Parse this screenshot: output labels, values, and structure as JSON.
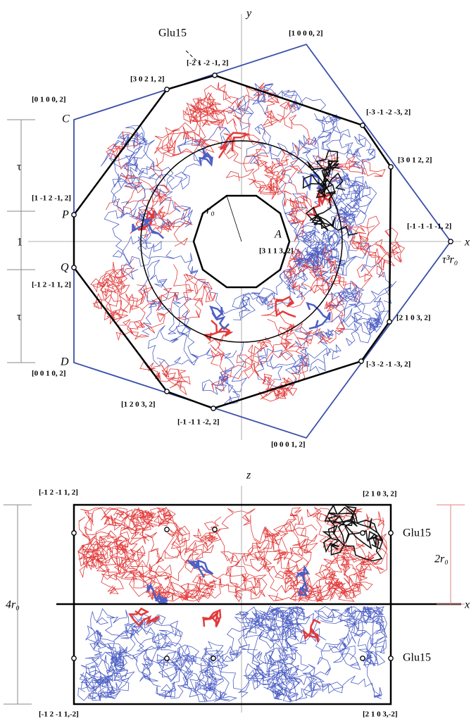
{
  "top": {
    "labels": [
      "y",
      "Glu15",
      "[1 0 0 0, 2]",
      "[-2 1 -2 -1, 2]",
      "[3 0 2 1, 2]",
      "[0 1 0 0, 2]",
      "C",
      "[-3 -1 -2 -3, 2]",
      "[3 0 1 2, 2]",
      "τ",
      "[1 -1 2 -1, 2]",
      "P",
      "r₀",
      "1",
      "[-1 -1 -1 -1, 2]",
      "A",
      "[3 1 1 3, 2]",
      "x",
      "Q",
      "τ³r₀",
      "[-1 2 -1 1, 2]",
      "τ",
      "[2 1 0 3, 2]",
      "D",
      "[-3 -2 -1 -3, 2]",
      "[0 0 1 0, 2]",
      "[1 2 0 3, 2]",
      "[-1 -1 1 -2, 2]",
      "[0 0 0 1, 2]"
    ]
  },
  "bottom": {
    "labels": [
      "z",
      "[-1 2 -1 1, 2]",
      "[2 1 0 3, 2]",
      "Glu15",
      "2r₀",
      "4r₀",
      "x",
      "Glu15",
      "[-1 2 -1 1,-2]",
      "[2 1 0 3,-2]"
    ]
  }
}
